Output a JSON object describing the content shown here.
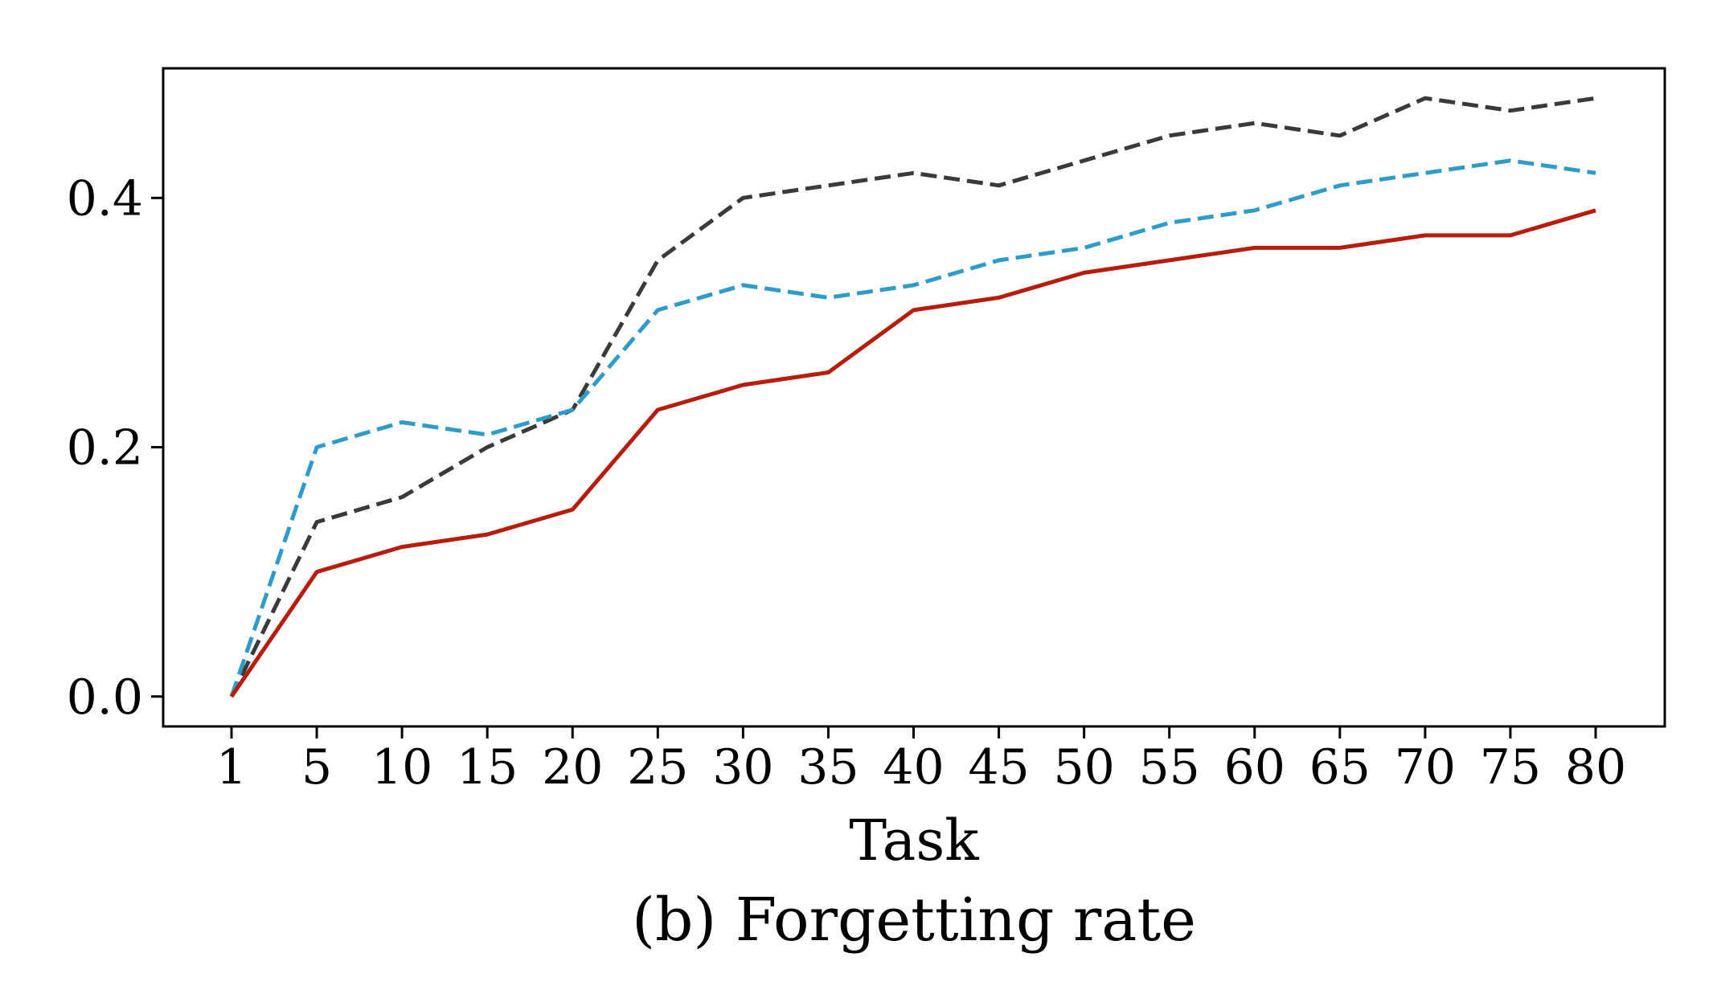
{
  "chart_data": {
    "type": "line",
    "title": "",
    "caption": "(b) Forgetting rate",
    "xlabel": "Task",
    "ylabel": "",
    "x": [
      1,
      5,
      10,
      15,
      20,
      25,
      30,
      35,
      40,
      45,
      50,
      55,
      60,
      65,
      70,
      75,
      80
    ],
    "x_tick_labels": [
      "1",
      "5",
      "10",
      "15",
      "20",
      "25",
      "30",
      "35",
      "40",
      "45",
      "50",
      "55",
      "60",
      "65",
      "70",
      "75",
      "80"
    ],
    "y_ticks": [
      0.0,
      0.2,
      0.4
    ],
    "y_tick_labels": [
      "0.0",
      "0.2",
      "0.4"
    ],
    "ylim": [
      -0.024,
      0.504
    ],
    "grid": false,
    "legend": "none",
    "series": [
      {
        "color": "#3a3a3a",
        "style": "dashed",
        "values": [
          0.0,
          0.14,
          0.16,
          0.2,
          0.23,
          0.35,
          0.4,
          0.41,
          0.42,
          0.41,
          0.43,
          0.45,
          0.46,
          0.45,
          0.48,
          0.47,
          0.48
        ]
      },
      {
        "color": "#2e9cc8",
        "style": "dashed",
        "values": [
          0.0,
          0.2,
          0.22,
          0.21,
          0.23,
          0.31,
          0.33,
          0.32,
          0.33,
          0.35,
          0.36,
          0.38,
          0.39,
          0.41,
          0.42,
          0.43,
          0.42
        ]
      },
      {
        "color": "#b81c0c",
        "style": "solid",
        "values": [
          0.0,
          0.1,
          0.12,
          0.13,
          0.15,
          0.23,
          0.25,
          0.26,
          0.31,
          0.32,
          0.34,
          0.35,
          0.36,
          0.36,
          0.37,
          0.37,
          0.39
        ]
      }
    ]
  }
}
